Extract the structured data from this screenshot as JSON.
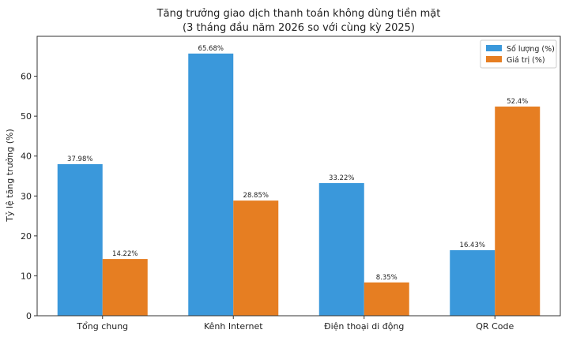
{
  "chart_data": {
    "type": "bar",
    "title": "Tăng trưởng giao dịch thanh toán không dùng tiền mặt",
    "subtitle": "(3 tháng đầu năm 2026 so với cùng kỳ 2025)",
    "xlabel": "",
    "ylabel": "Tỷ lệ tăng trưởng (%)",
    "ylim": [
      0,
      70
    ],
    "yticks": [
      0,
      10,
      20,
      30,
      40,
      50,
      60
    ],
    "grid": false,
    "legend_position": "top-right",
    "categories": [
      "Tổng chung",
      "Kênh Internet",
      "Điện thoại di động",
      "QR Code"
    ],
    "series": [
      {
        "name": "Số lượng (%)",
        "color": "#3A98DB",
        "values": [
          37.98,
          65.68,
          33.22,
          16.43
        ],
        "labels": [
          "37.98%",
          "65.68%",
          "33.22%",
          "16.43%"
        ]
      },
      {
        "name": "Giá trị (%)",
        "color": "#E67E22",
        "values": [
          14.22,
          28.85,
          8.35,
          52.4
        ],
        "labels": [
          "14.22%",
          "28.85%",
          "8.35%",
          "52.4%"
        ]
      }
    ]
  }
}
